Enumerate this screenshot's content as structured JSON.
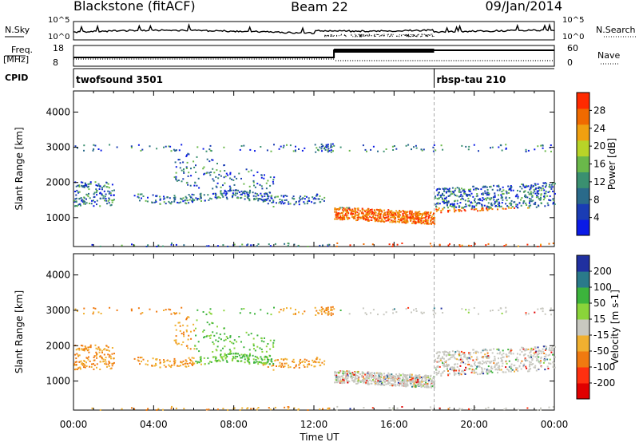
{
  "header": {
    "station": "Blackstone (fitACF)",
    "beam": "Beam 22",
    "date": "09/Jan/2014"
  },
  "noise_panel": {
    "left_label": "N.Sky",
    "right_label": "N.Search",
    "left_ticks": [
      "10^5",
      "10^0"
    ],
    "right_ticks": [
      "10^5",
      "10^0"
    ]
  },
  "freq_panel": {
    "left_label": "Freq.",
    "left_unit": "[MHz]",
    "right_label": "Nave",
    "left_ticks": [
      "18",
      "8"
    ],
    "right_ticks": [
      "60",
      "0"
    ]
  },
  "cpid": {
    "label": "CPID",
    "programs": [
      {
        "name": "twofsound 3501",
        "start_hour": 0
      },
      {
        "name": "rbsp-tau 210",
        "start_hour": 18
      }
    ]
  },
  "chart_data": [
    {
      "type": "heatmap",
      "name": "power",
      "ylabel": "Slant Range [km]",
      "yticks": [
        1000,
        2000,
        3000,
        4000
      ],
      "ylim": [
        180,
        4600
      ],
      "colorbar_label": "Power [dB]",
      "colorbar_ticks": [
        4,
        8,
        12,
        16,
        20,
        24,
        28
      ],
      "colorbar_range": [
        0,
        32
      ],
      "colors": [
        "#0a1ae6",
        "#1a3cb4",
        "#2a6a8a",
        "#3a9070",
        "#6ab84a",
        "#b8d428",
        "#f0a010",
        "#f06a00",
        "#ff2a00"
      ]
    },
    {
      "type": "heatmap",
      "name": "velocity",
      "ylabel": "Slant Range [km]",
      "yticks": [
        1000,
        2000,
        3000,
        4000
      ],
      "ylim": [
        180,
        4600
      ],
      "colorbar_label": "Velocity [m s-1]",
      "colorbar_ticks": [
        "200",
        "100",
        "50",
        "15",
        "-15",
        "-50",
        "-100",
        "-200"
      ],
      "colors": [
        "#2030a0",
        "#2a7a8a",
        "#3cb43c",
        "#8ad43a",
        "#c8c8c0",
        "#f0b030",
        "#f07a10",
        "#ff3010",
        "#e00000"
      ]
    }
  ],
  "time_axis": {
    "xlabel": "Time UT",
    "ticks": [
      "00:00",
      "04:00",
      "08:00",
      "12:00",
      "16:00",
      "20:00",
      "00:00"
    ],
    "range_hours": [
      0,
      24
    ]
  }
}
